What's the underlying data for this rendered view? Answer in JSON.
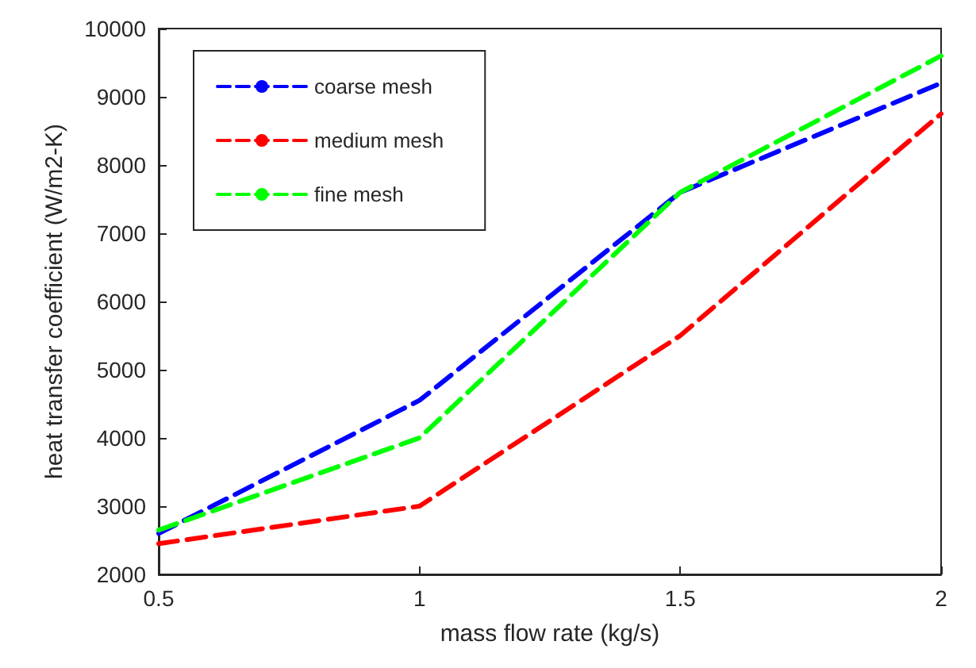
{
  "chart_data": {
    "type": "line",
    "xlabel": "mass flow rate (kg/s)",
    "ylabel": "heat transfer coefficient (W/m2-K)",
    "x": [
      0.5,
      1,
      1.5,
      2
    ],
    "series": [
      {
        "name": "coarse mesh",
        "color": "#0000ff",
        "values": [
          2600,
          4550,
          7600,
          9200
        ]
      },
      {
        "name": "medium mesh",
        "color": "#ff0000",
        "values": [
          2450,
          3000,
          5500,
          8750
        ]
      },
      {
        "name": "fine mesh",
        "color": "#00ff00",
        "values": [
          2650,
          4000,
          7600,
          9600
        ]
      }
    ],
    "xlim": [
      0.5,
      2
    ],
    "xticks": [
      0.5,
      1,
      1.5,
      2
    ],
    "ylim": [
      2000,
      10000
    ],
    "yticks": [
      2000,
      3000,
      4000,
      5000,
      6000,
      7000,
      8000,
      9000,
      10000
    ],
    "grid": false,
    "legend": "top left",
    "marker": "none",
    "line_style": "dashed"
  }
}
